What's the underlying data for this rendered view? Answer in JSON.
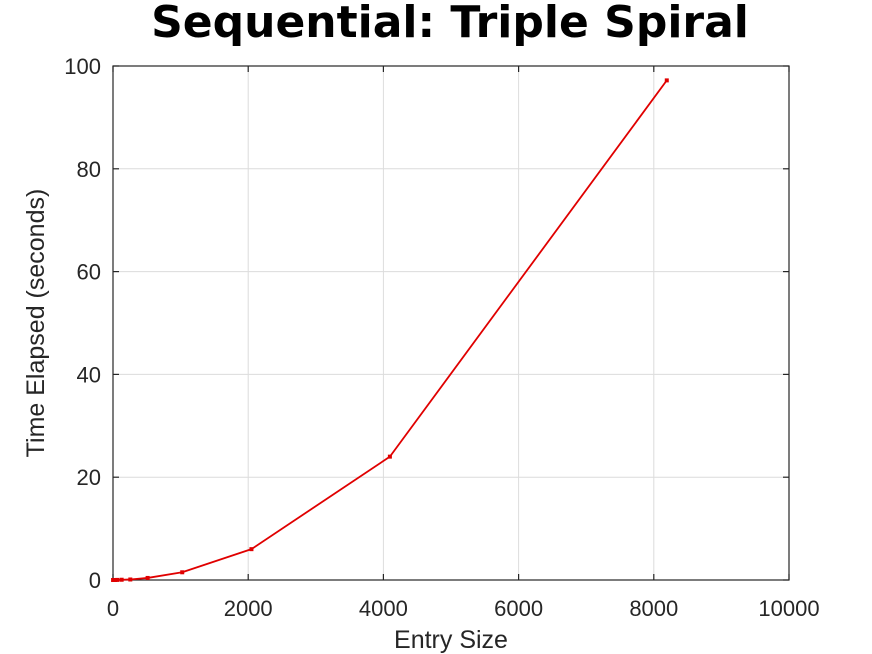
{
  "chart_data": {
    "type": "line",
    "title": "Sequential: Triple Spiral",
    "xlabel": "Entry Size",
    "ylabel": "Time Elapsed (seconds)",
    "xlim": [
      0,
      10000
    ],
    "ylim": [
      0,
      100
    ],
    "xticks": [
      0,
      2000,
      4000,
      6000,
      8000,
      10000
    ],
    "yticks": [
      0,
      20,
      40,
      60,
      80,
      100
    ],
    "grid": true,
    "series": [
      {
        "color": "#e00000",
        "x": [
          2,
          4,
          8,
          16,
          32,
          64,
          128,
          256,
          512,
          1024,
          2048,
          4096,
          8192
        ],
        "y": [
          0.0,
          0.0,
          0.0,
          0.0,
          0.0,
          0.02,
          0.05,
          0.1,
          0.4,
          1.5,
          6.0,
          24.0,
          97.2
        ]
      }
    ]
  }
}
